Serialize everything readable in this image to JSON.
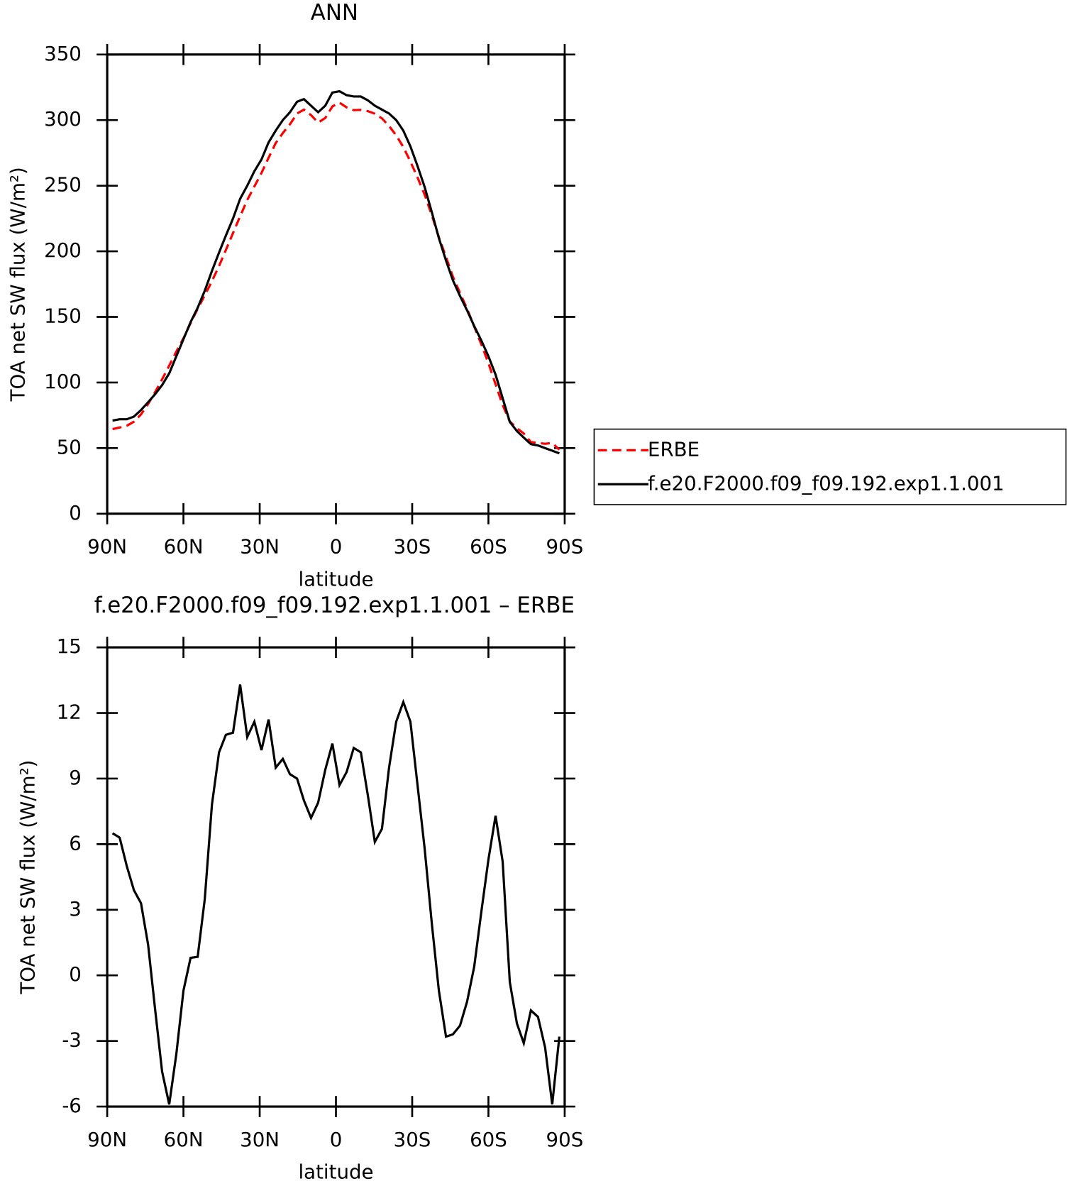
{
  "chart_data": [
    {
      "type": "line",
      "title": "ANN",
      "xlabel": "latitude",
      "ylabel": "TOA net SW flux (W/m²)",
      "x": [
        87.9,
        85.1,
        82.3,
        79.5,
        76.7,
        73.9,
        71.2,
        68.4,
        65.6,
        62.8,
        60.0,
        57.2,
        54.4,
        51.6,
        48.8,
        46.0,
        43.3,
        40.5,
        37.7,
        34.9,
        32.1,
        29.3,
        26.5,
        23.7,
        20.9,
        18.1,
        15.3,
        12.6,
        9.8,
        7.0,
        4.2,
        1.4,
        -1.4,
        -4.2,
        -7.0,
        -9.8,
        -12.6,
        -15.3,
        -18.1,
        -20.9,
        -23.7,
        -26.5,
        -29.3,
        -32.1,
        -34.9,
        -37.7,
        -40.5,
        -43.3,
        -46.0,
        -48.8,
        -51.6,
        -54.4,
        -57.2,
        -60.0,
        -62.8,
        -65.6,
        -68.4,
        -71.2,
        -73.9,
        -76.7,
        -79.5,
        -82.3,
        -85.1,
        -87.9
      ],
      "series": [
        {
          "name": "ERBE",
          "color": "#ff0000",
          "linestyle": "dashed",
          "values": [
            64.5,
            65.7,
            67.0,
            70.1,
            75.7,
            83.6,
            92.5,
            102.4,
            112.9,
            123.6,
            133.7,
            145.2,
            156.2,
            166.5,
            177.2,
            188.8,
            201.0,
            213.9,
            226.7,
            239.1,
            249.4,
            259.7,
            271.3,
            282.5,
            290.1,
            296.8,
            305.0,
            308.0,
            303.8,
            298.1,
            301.6,
            310.4,
            313.3,
            309.7,
            307.6,
            307.8,
            306.8,
            304.9,
            301.3,
            295.5,
            288.4,
            279.5,
            268.4,
            256.3,
            243.2,
            227.6,
            210.7,
            195.8,
            180.7,
            168.3,
            156.2,
            142.6,
            129.1,
            114.7,
            98.7,
            82.8,
            70.3,
            65.2,
            61.1,
            54.6,
            53.9,
            53.3,
            53.9,
            48.8
          ]
        },
        {
          "name": "f.e20.F2000.f09_f09.192.exp1.1.001",
          "color": "#000000",
          "linestyle": "solid",
          "values": [
            71,
            72,
            72,
            74,
            79,
            85,
            91,
            98,
            107,
            120,
            133,
            146,
            157,
            170,
            185,
            199,
            212,
            225,
            240,
            250,
            261,
            270,
            283,
            292,
            300,
            306,
            314,
            316,
            311,
            306,
            311,
            321,
            322,
            319,
            318,
            318,
            315,
            311,
            308,
            305,
            300,
            292,
            280,
            265,
            249,
            230,
            210,
            193,
            178,
            166,
            155,
            143,
            132,
            120,
            106,
            88,
            70,
            63,
            58,
            53,
            52,
            50,
            48,
            46
          ]
        }
      ],
      "xlim": [
        90,
        -90
      ],
      "xticks": [
        {
          "value": 90,
          "label": "90N"
        },
        {
          "value": 60,
          "label": "60N"
        },
        {
          "value": 30,
          "label": "30N"
        },
        0,
        {
          "value": -30,
          "label": "30S"
        },
        {
          "value": -60,
          "label": "60S"
        },
        {
          "value": -90,
          "label": "90S"
        }
      ],
      "ylim": [
        0,
        350
      ],
      "yticks": [
        0,
        50,
        100,
        150,
        200,
        250,
        300,
        350
      ],
      "legend": "right"
    },
    {
      "type": "line",
      "title": "f.e20.F2000.f09_f09.192.exp1.1.001 – ERBE",
      "xlabel": "latitude",
      "ylabel": "TOA net SW flux (W/m²)",
      "x": [
        87.9,
        85.1,
        82.3,
        79.5,
        76.7,
        73.9,
        71.2,
        68.4,
        65.6,
        62.8,
        60.0,
        57.2,
        54.4,
        51.6,
        48.8,
        46.0,
        43.3,
        40.5,
        37.7,
        34.9,
        32.1,
        29.3,
        26.5,
        23.7,
        20.9,
        18.1,
        15.3,
        12.6,
        9.8,
        7.0,
        4.2,
        1.4,
        -1.4,
        -4.2,
        -7.0,
        -9.8,
        -12.6,
        -15.3,
        -18.1,
        -20.9,
        -23.7,
        -26.5,
        -29.3,
        -32.1,
        -34.9,
        -37.7,
        -40.5,
        -43.3,
        -46.0,
        -48.8,
        -51.6,
        -54.4,
        -57.2,
        -60.0,
        -62.8,
        -65.6,
        -68.4,
        -71.2,
        -73.9,
        -76.7,
        -79.5,
        -82.3,
        -85.1,
        -87.9
      ],
      "color": "#000000",
      "values": [
        6.5,
        6.3,
        5.0,
        3.9,
        3.3,
        1.4,
        -1.5,
        -4.4,
        -5.9,
        -3.6,
        -0.7,
        0.8,
        0.85,
        3.5,
        7.8,
        10.2,
        11.0,
        11.1,
        13.3,
        10.9,
        11.6,
        10.3,
        11.7,
        9.5,
        9.9,
        9.2,
        9.0,
        8.0,
        7.2,
        7.9,
        9.4,
        10.6,
        8.7,
        9.3,
        10.4,
        10.2,
        8.2,
        6.1,
        6.7,
        9.5,
        11.6,
        12.5,
        11.6,
        8.7,
        5.8,
        2.4,
        -0.7,
        -2.8,
        -2.7,
        -2.3,
        -1.2,
        0.4,
        2.9,
        5.3,
        7.3,
        5.2,
        -0.3,
        -2.2,
        -3.1,
        -1.6,
        -1.9,
        -3.3,
        -5.9,
        -2.8
      ],
      "xlim": [
        90,
        -90
      ],
      "xticks": [
        {
          "value": 90,
          "label": "90N"
        },
        {
          "value": 60,
          "label": "60N"
        },
        {
          "value": 30,
          "label": "30N"
        },
        0,
        {
          "value": -30,
          "label": "30S"
        },
        {
          "value": -60,
          "label": "60S"
        },
        {
          "value": -90,
          "label": "90S"
        }
      ],
      "ylim": [
        -6,
        15
      ],
      "yticks": [
        -6,
        -3,
        0,
        3,
        6,
        9,
        12,
        15
      ]
    }
  ]
}
